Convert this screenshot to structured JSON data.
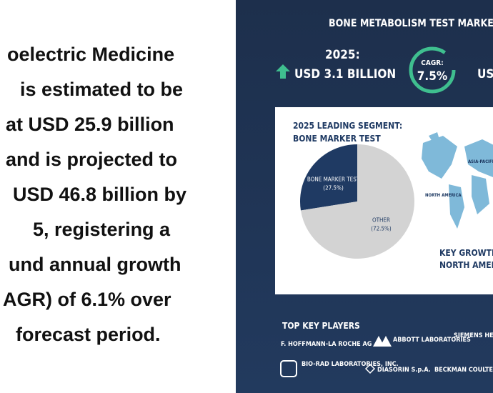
{
  "article_text": {
    "lines": [
      "oelectric Medicine",
      "is estimated to be",
      "at USD 25.9 billion",
      "and is projected to",
      "USD 46.8 billion by",
      "5, registering a",
      "und annual growth",
      "AGR) of 6.1% over",
      "forecast period."
    ]
  },
  "infographic": {
    "title": "BONE METABOLISM TEST MARKET O",
    "year_label": "2025:",
    "year_value": "USD 3.1 BILLION",
    "cagr_label": "CAGR:",
    "cagr_value": "7.5%",
    "future_value": "USD",
    "segment_heading": "2025 LEADING SEGMENT:",
    "segment_name": "BONE MARKER TEST",
    "map_labels": [
      "NORTH AMERICA",
      "ASIA-PACIFIC"
    ],
    "growth_heading": "KEY GROWTH RE",
    "growth_region": "NORTH AMERICA,",
    "players_heading": "TOP KEY PLAYERS",
    "players": [
      "F. HOFFMANN-LA ROCHE AG",
      "ABBOTT LABORATORIES",
      "SIEMENS HEALTHINEERS",
      "BIO-RAD LABORATORIES, INC.",
      "DIASORIN S.p.A.",
      "BECKMAN COULTER, I"
    ]
  },
  "chart_data": {
    "type": "pie",
    "categories": [
      "BONE MARKER TEST",
      "OTHER"
    ],
    "values": [
      27.5,
      72.5
    ],
    "value_labels": [
      "(27.5%)",
      "(72.5%)"
    ],
    "colors": [
      "#1f3a63",
      "#d3d3d3"
    ]
  }
}
